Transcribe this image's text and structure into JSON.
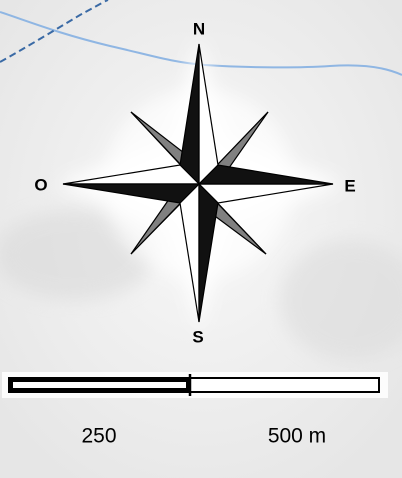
{
  "compass": {
    "north": "N",
    "east": "E",
    "south": "S",
    "west": "O"
  },
  "scale_bar": {
    "mid_label": "250",
    "end_label": "500 m"
  },
  "colors": {
    "background": "#f2f2f2",
    "halo": "#ffffff",
    "river": "#8fb6e3",
    "boundary": "#3a6aa5",
    "rose_dark": "#111111",
    "rose_light": "#ffffff",
    "rose_gray": "#808080"
  }
}
